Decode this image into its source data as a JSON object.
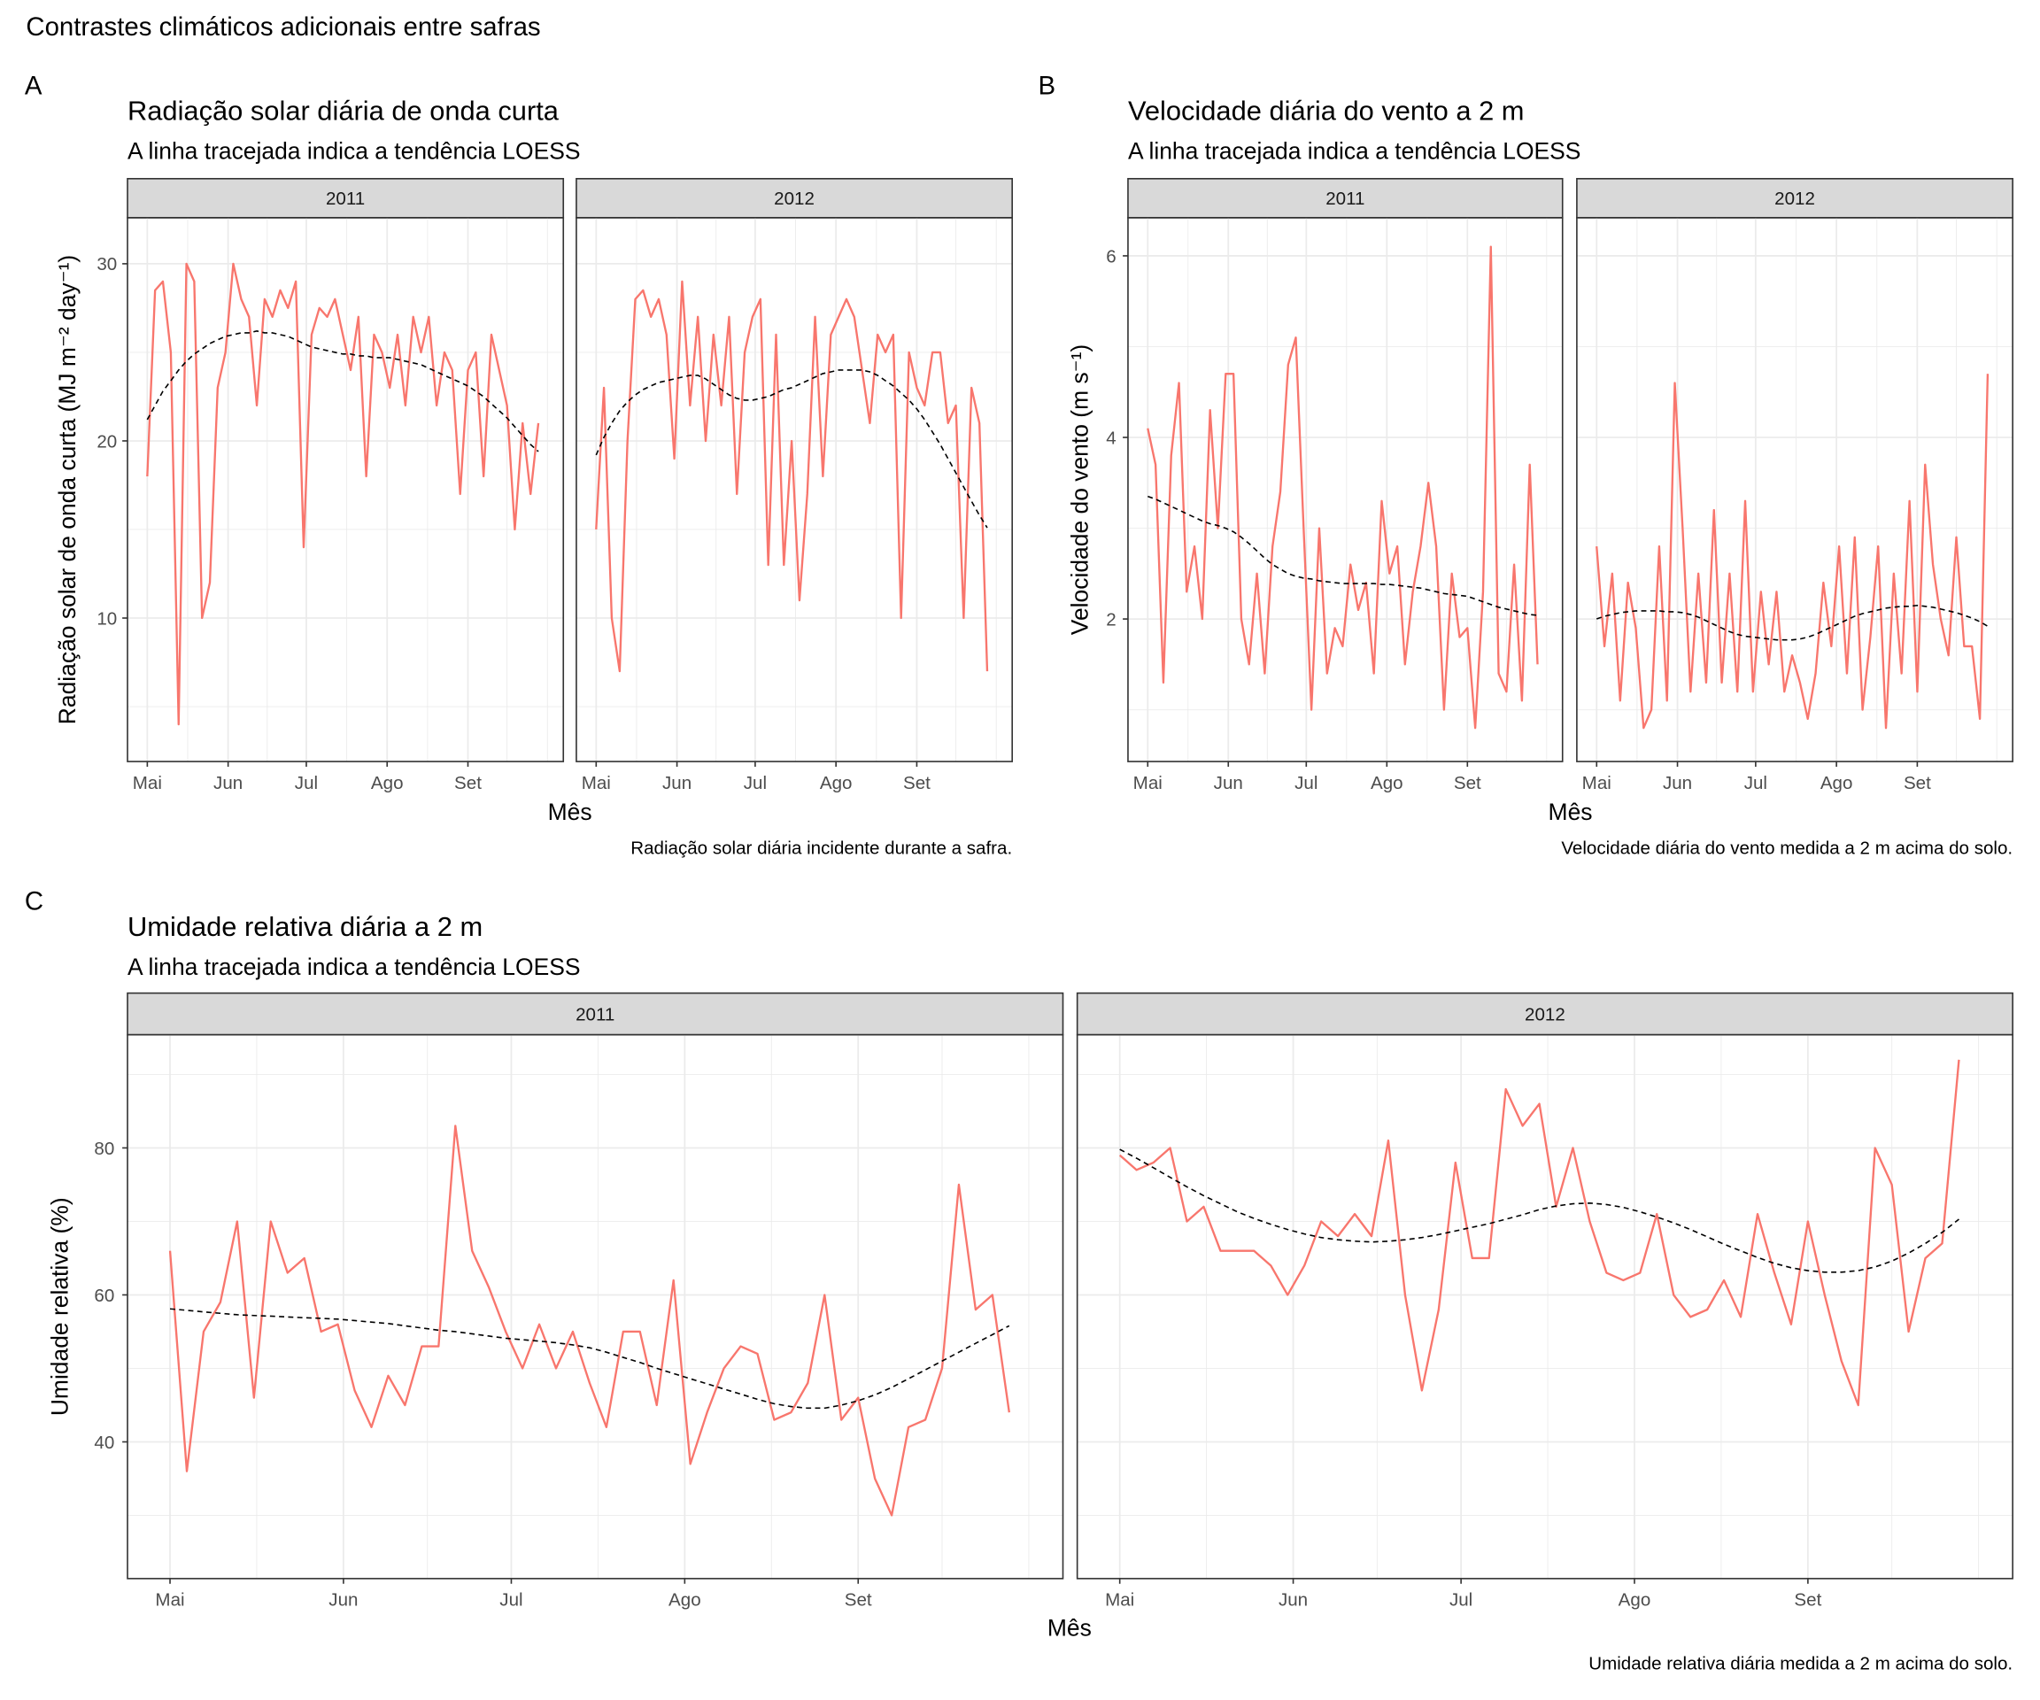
{
  "figure_title": "Contrastes climáticos adicionais entre safras",
  "style": {
    "series_color": "#F8766D",
    "trend_color": "#000000",
    "trend_dash": "dashed",
    "strip_fill": "#D9D9D9",
    "grid": true
  },
  "dates": [
    "05-01",
    "05-04",
    "05-07",
    "05-10",
    "05-13",
    "05-16",
    "05-19",
    "05-22",
    "05-25",
    "05-28",
    "05-31",
    "06-03",
    "06-06",
    "06-09",
    "06-12",
    "06-15",
    "06-18",
    "06-21",
    "06-24",
    "06-27",
    "06-30",
    "07-03",
    "07-06",
    "07-09",
    "07-12",
    "07-15",
    "07-18",
    "07-21",
    "07-24",
    "07-27",
    "07-30",
    "08-02",
    "08-05",
    "08-08",
    "08-11",
    "08-14",
    "08-17",
    "08-20",
    "08-23",
    "08-26",
    "08-29",
    "09-01",
    "09-04",
    "09-07",
    "09-10",
    "09-13",
    "09-16",
    "09-19",
    "09-22",
    "09-25",
    "09-28"
  ],
  "chart_data": [
    {
      "tag": "A",
      "type": "line",
      "title": "Radiação solar diária de onda curta",
      "subtitle": "A linha tracejada indica a tendência LOESS",
      "ylabel": "Radiação solar de onda curta (MJ m⁻² day⁻¹)",
      "xlabel": "Mês",
      "caption": "Radiação solar diária incidente durante a safra.",
      "xticks": [
        "Mai",
        "Jun",
        "Jul",
        "Ago",
        "Set"
      ],
      "yticks": [
        10,
        20,
        30
      ],
      "ylim": [
        1.9,
        32.6
      ],
      "facets": [
        {
          "label": "2011",
          "values": [
            18,
            28.5,
            29,
            25,
            4,
            30,
            29,
            10,
            12,
            23,
            25,
            30,
            28,
            27,
            22,
            28,
            27,
            28.5,
            27.5,
            29,
            14,
            26,
            27.5,
            27,
            28,
            26,
            24,
            27,
            18,
            26,
            25,
            23,
            26,
            22,
            27,
            25,
            27,
            22,
            25,
            24,
            17,
            24,
            25,
            18,
            26,
            24,
            22,
            15,
            21,
            17,
            21
          ],
          "loess": [
            21.2,
            22.0,
            22.8,
            23.4,
            24.0,
            24.5,
            24.9,
            25.2,
            25.5,
            25.7,
            25.9,
            26.0,
            26.1,
            26.1,
            26.2,
            26.1,
            26.1,
            26.0,
            25.9,
            25.7,
            25.5,
            25.3,
            25.2,
            25.1,
            25.0,
            24.9,
            24.9,
            24.8,
            24.8,
            24.7,
            24.7,
            24.7,
            24.6,
            24.5,
            24.4,
            24.3,
            24.1,
            23.9,
            23.7,
            23.5,
            23.3,
            23.1,
            22.8,
            22.5,
            22.1,
            21.7,
            21.3,
            20.8,
            20.3,
            19.8,
            19.4
          ]
        },
        {
          "label": "2012",
          "values": [
            15,
            23,
            10,
            7,
            20,
            28,
            28.5,
            27,
            28,
            26,
            19,
            29,
            22,
            27,
            20,
            26,
            22,
            27,
            17,
            25,
            27,
            28,
            13,
            26,
            13,
            20,
            11,
            17,
            27,
            18,
            26,
            27,
            28,
            27,
            24,
            21,
            26,
            25,
            26,
            10,
            25,
            23,
            22,
            25,
            25,
            21,
            22,
            10,
            23,
            21,
            7
          ],
          "loess": [
            19.2,
            20.2,
            21.0,
            21.7,
            22.2,
            22.6,
            22.9,
            23.1,
            23.3,
            23.4,
            23.5,
            23.6,
            23.7,
            23.7,
            23.5,
            23.2,
            22.9,
            22.6,
            22.4,
            22.3,
            22.3,
            22.4,
            22.5,
            22.7,
            22.9,
            23.0,
            23.2,
            23.4,
            23.6,
            23.8,
            23.9,
            24.0,
            24.0,
            24.0,
            24.0,
            23.9,
            23.7,
            23.4,
            23.1,
            22.7,
            22.3,
            21.8,
            21.2,
            20.5,
            19.8,
            19.0,
            18.2,
            17.4,
            16.6,
            15.8,
            15.1
          ]
        }
      ]
    },
    {
      "tag": "B",
      "type": "line",
      "title": "Velocidade diária do vento a 2 m",
      "subtitle": "A linha tracejada indica a tendência LOESS",
      "ylabel": "Velocidade do vento (m s⁻¹)",
      "xlabel": "Mês",
      "caption": "Velocidade diária do vento medida a 2 m acima do solo.",
      "xticks": [
        "Mai",
        "Jun",
        "Jul",
        "Ago",
        "Set"
      ],
      "yticks": [
        2,
        4,
        6
      ],
      "ylim": [
        0.43,
        6.42
      ],
      "facets": [
        {
          "label": "2011",
          "values": [
            4.1,
            3.7,
            1.3,
            3.8,
            4.6,
            2.3,
            2.8,
            2.0,
            4.3,
            3.0,
            4.7,
            4.7,
            2.0,
            1.5,
            2.5,
            1.4,
            2.8,
            3.4,
            4.8,
            5.1,
            3.0,
            1.0,
            3.0,
            1.4,
            1.9,
            1.7,
            2.6,
            2.1,
            2.4,
            1.4,
            3.3,
            2.5,
            2.8,
            1.5,
            2.3,
            2.8,
            3.5,
            2.8,
            1.0,
            2.5,
            1.8,
            1.9,
            0.8,
            2.3,
            6.1,
            1.4,
            1.2,
            2.6,
            1.1,
            3.7,
            1.5
          ],
          "loess": [
            3.35,
            3.32,
            3.28,
            3.24,
            3.2,
            3.16,
            3.12,
            3.08,
            3.05,
            3.03,
            3.0,
            2.96,
            2.9,
            2.83,
            2.75,
            2.67,
            2.6,
            2.55,
            2.5,
            2.47,
            2.45,
            2.44,
            2.42,
            2.41,
            2.4,
            2.39,
            2.39,
            2.39,
            2.39,
            2.39,
            2.38,
            2.38,
            2.37,
            2.36,
            2.35,
            2.34,
            2.32,
            2.3,
            2.28,
            2.27,
            2.26,
            2.25,
            2.22,
            2.19,
            2.16,
            2.13,
            2.11,
            2.09,
            2.07,
            2.05,
            2.04
          ]
        },
        {
          "label": "2012",
          "values": [
            2.8,
            1.7,
            2.5,
            1.1,
            2.4,
            1.9,
            0.8,
            1.0,
            2.8,
            1.1,
            4.6,
            3.0,
            1.2,
            2.5,
            1.3,
            3.2,
            1.3,
            2.5,
            1.2,
            3.3,
            1.2,
            2.3,
            1.5,
            2.3,
            1.2,
            1.6,
            1.3,
            0.9,
            1.4,
            2.4,
            1.7,
            2.8,
            1.4,
            2.9,
            1.0,
            1.8,
            2.8,
            0.8,
            2.5,
            1.4,
            3.3,
            1.2,
            3.7,
            2.6,
            2.0,
            1.6,
            2.9,
            1.7,
            1.7,
            0.9,
            4.7
          ],
          "loess": [
            2.0,
            2.03,
            2.05,
            2.07,
            2.08,
            2.09,
            2.09,
            2.09,
            2.09,
            2.08,
            2.08,
            2.07,
            2.05,
            2.02,
            1.98,
            1.94,
            1.9,
            1.86,
            1.83,
            1.81,
            1.8,
            1.79,
            1.78,
            1.77,
            1.77,
            1.77,
            1.78,
            1.8,
            1.83,
            1.87,
            1.91,
            1.95,
            1.99,
            2.03,
            2.06,
            2.08,
            2.1,
            2.12,
            2.13,
            2.14,
            2.14,
            2.15,
            2.14,
            2.13,
            2.11,
            2.09,
            2.07,
            2.04,
            2.01,
            1.97,
            1.92
          ]
        }
      ]
    },
    {
      "tag": "C",
      "type": "line",
      "title": "Umidade relativa diária a 2 m",
      "subtitle": "A linha tracejada indica a tendência LOESS",
      "ylabel": "Umidade relativa (%)",
      "xlabel": "Mês",
      "caption": "Umidade relativa diária medida a 2 m acima do solo.",
      "xticks": [
        "Mai",
        "Jun",
        "Jul",
        "Ago",
        "Set"
      ],
      "yticks": [
        40,
        60,
        80
      ],
      "ylim": [
        21.4,
        95.4
      ],
      "facets": [
        {
          "label": "2011",
          "values": [
            66,
            36,
            55,
            59,
            70,
            46,
            70,
            63,
            65,
            55,
            56,
            47,
            42,
            49,
            45,
            53,
            53,
            83,
            66,
            61,
            55,
            50,
            56,
            50,
            55,
            48,
            42,
            55,
            55,
            45,
            62,
            37,
            44,
            50,
            53,
            52,
            43,
            44,
            48,
            60,
            43,
            46,
            35,
            30,
            42,
            43,
            50,
            75,
            58,
            60,
            44
          ],
          "loess": [
            58.1,
            57.9,
            57.7,
            57.5,
            57.3,
            57.2,
            57.1,
            57.0,
            56.9,
            56.8,
            56.7,
            56.5,
            56.3,
            56.1,
            55.8,
            55.5,
            55.2,
            55.0,
            54.7,
            54.4,
            54.1,
            53.9,
            53.7,
            53.5,
            53.2,
            52.8,
            52.2,
            51.5,
            50.8,
            50.0,
            49.3,
            48.6,
            47.9,
            47.2,
            46.5,
            45.8,
            45.2,
            44.8,
            44.6,
            44.6,
            45.0,
            45.6,
            46.4,
            47.4,
            48.6,
            49.8,
            51.0,
            52.2,
            53.4,
            54.6,
            55.8
          ]
        },
        {
          "label": "2012",
          "values": [
            79,
            77,
            78,
            80,
            70,
            72,
            66,
            66,
            66,
            64,
            60,
            64,
            70,
            68,
            71,
            68,
            81,
            60,
            47,
            58,
            78,
            65,
            65,
            88,
            83,
            86,
            72,
            80,
            70,
            63,
            62,
            63,
            71,
            60,
            57,
            58,
            62,
            57,
            71,
            63,
            56,
            70,
            60,
            51,
            45,
            80,
            75,
            55,
            65,
            67,
            92
          ],
          "loess": [
            79.8,
            78.6,
            77.3,
            76.0,
            74.7,
            73.5,
            72.4,
            71.3,
            70.4,
            69.6,
            68.9,
            68.3,
            67.8,
            67.5,
            67.3,
            67.2,
            67.3,
            67.5,
            67.8,
            68.2,
            68.7,
            69.2,
            69.7,
            70.3,
            70.9,
            71.6,
            72.1,
            72.4,
            72.5,
            72.3,
            71.9,
            71.3,
            70.6,
            69.8,
            68.9,
            67.9,
            66.9,
            66.0,
            65.1,
            64.3,
            63.7,
            63.3,
            63.1,
            63.1,
            63.3,
            63.8,
            64.6,
            65.7,
            67.0,
            68.5,
            70.3
          ]
        }
      ]
    }
  ]
}
